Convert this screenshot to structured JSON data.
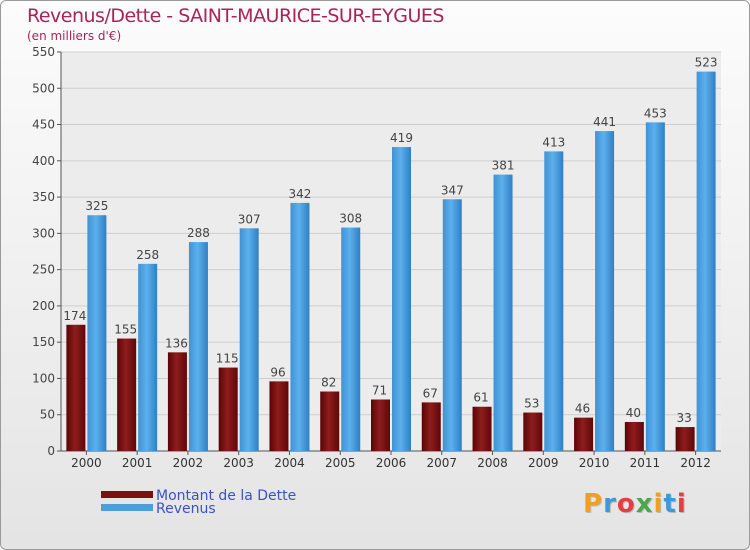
{
  "title": "Revenus/Dette - SAINT-MAURICE-SUR-EYGUES",
  "subtitle": "(en milliers d'€)",
  "brand": "Proxiti",
  "chart_data": {
    "type": "bar",
    "categories": [
      "2000",
      "2001",
      "2002",
      "2003",
      "2004",
      "2005",
      "2006",
      "2007",
      "2008",
      "2009",
      "2010",
      "2011",
      "2012"
    ],
    "series": [
      {
        "name": "Montant de la Dette",
        "color": "#7a1010",
        "values": [
          174,
          155,
          136,
          115,
          96,
          82,
          71,
          67,
          61,
          53,
          46,
          40,
          33
        ]
      },
      {
        "name": "Revenus",
        "color": "#4a9fdf",
        "values": [
          325,
          258,
          288,
          307,
          342,
          308,
          419,
          347,
          381,
          413,
          441,
          453,
          523
        ]
      }
    ],
    "ylim": [
      0,
      550
    ],
    "yticks": [
      0,
      50,
      100,
      150,
      200,
      250,
      300,
      350,
      400,
      450,
      500,
      550
    ],
    "grid": true,
    "legend_position": "bottom-left"
  }
}
